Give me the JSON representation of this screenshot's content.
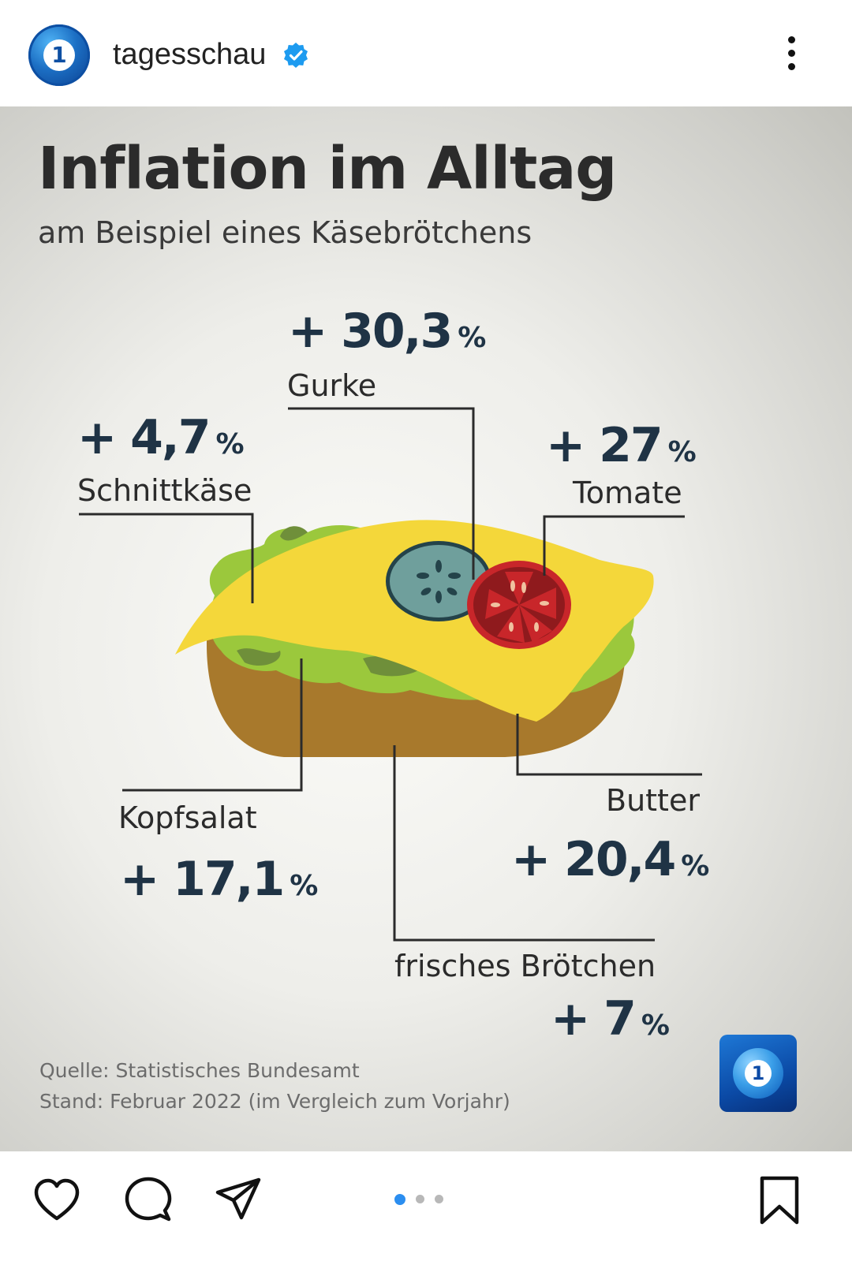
{
  "header": {
    "username": "tagesschau",
    "avatar_text": "1",
    "verified_icon": "verified-badge-icon",
    "more_icon": "more-vertical-icon"
  },
  "infographic": {
    "title": "Inflation im Alltag",
    "subtitle": "am Beispiel eines Käsebrötchens",
    "items": [
      {
        "name": "Gurke",
        "change": "+ 30,3",
        "unit": "%"
      },
      {
        "name": "Schnittkäse",
        "change": "+ 4,7",
        "unit": "%"
      },
      {
        "name": "Tomate",
        "change": "+ 27",
        "unit": "%"
      },
      {
        "name": "Kopfsalat",
        "change": "+ 17,1",
        "unit": "%"
      },
      {
        "name": "Butter",
        "change": "+ 20,4",
        "unit": "%"
      },
      {
        "name": "frisches Brötchen",
        "change": "+ 7",
        "unit": "%"
      }
    ],
    "source_line1": "Quelle: Statistisches Bundesamt",
    "source_line2": "Stand: Februar 2022 (im Vergleich zum Vorjahr)",
    "logo_text": "1"
  },
  "carousel": {
    "count": 3,
    "active": 1
  },
  "colors": {
    "value_text": "#1f3345",
    "cheese": "#f4d73a",
    "bread": "#a8792c",
    "lettuce": "#9bc83c",
    "cucumber": "#6f9f9c",
    "tomato": "#c8262a",
    "active_dot": "#2b8ef0"
  }
}
